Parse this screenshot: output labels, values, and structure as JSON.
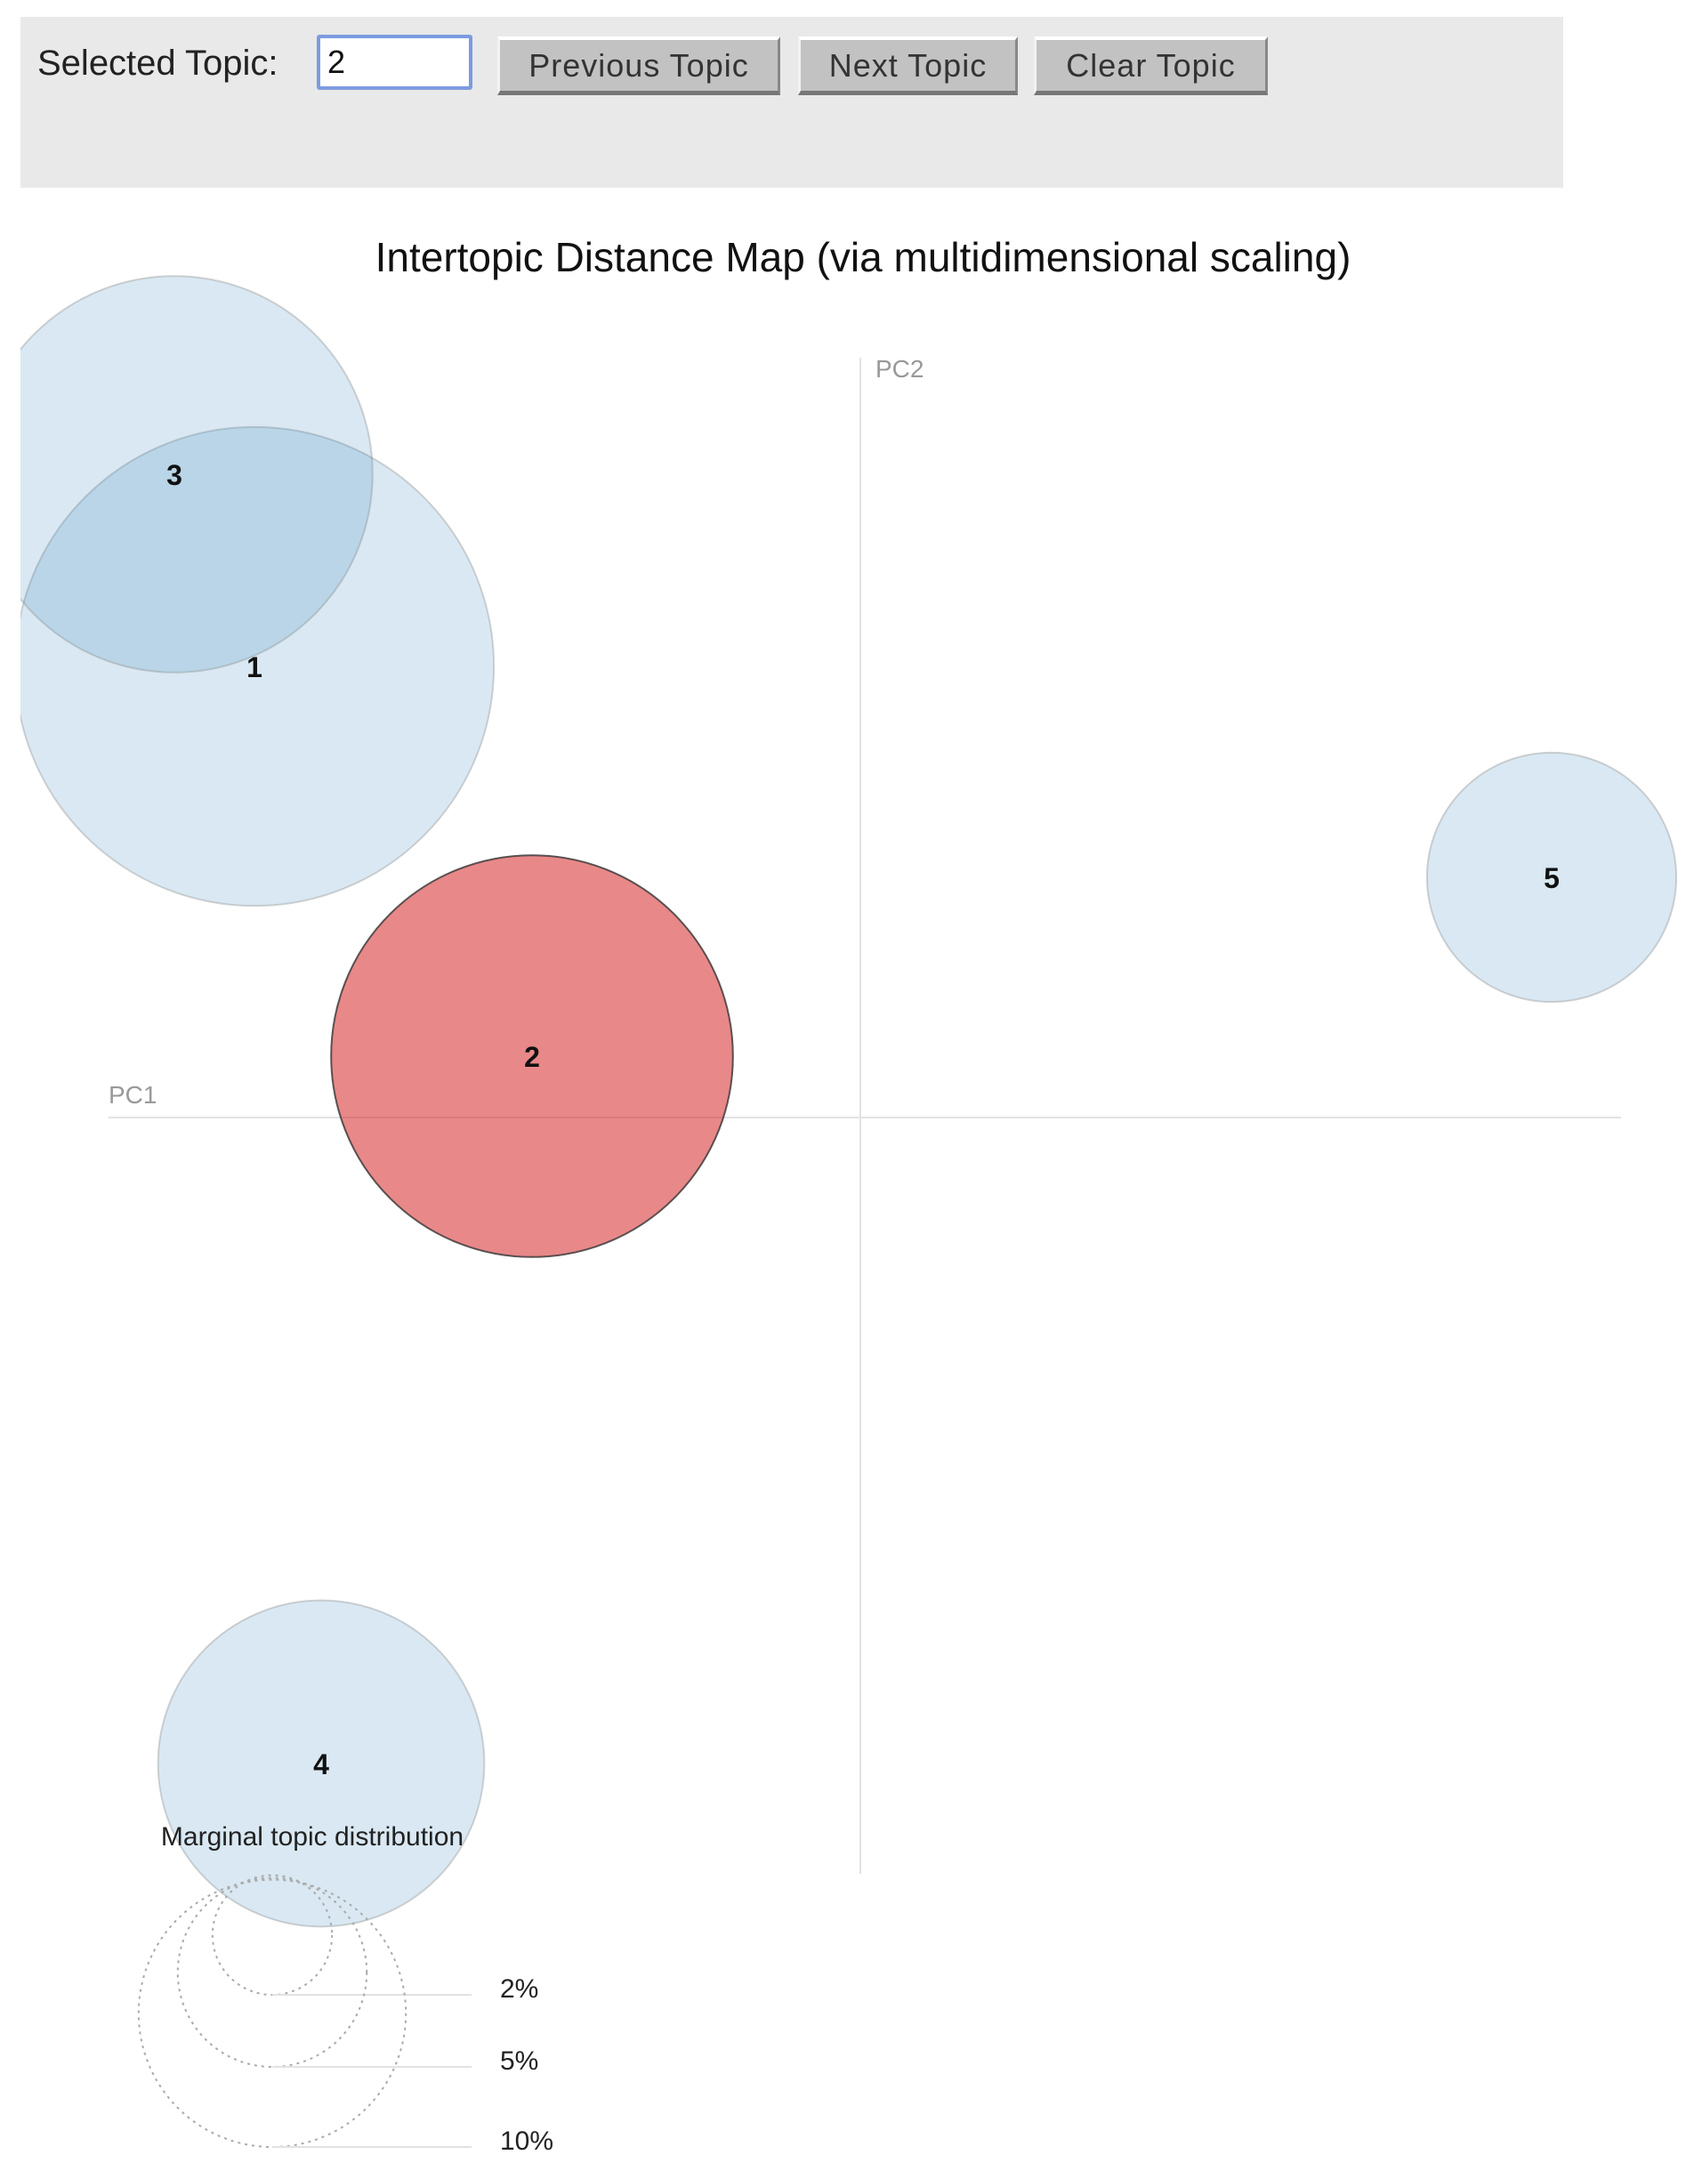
{
  "toolbar": {
    "selected_label": "Selected Topic:",
    "selected_value": "2",
    "previous_label": "Previous Topic",
    "next_label": "Next Topic",
    "clear_label": "Clear Topic"
  },
  "chart_data": {
    "type": "scatter",
    "title": "Intertopic Distance Map (via multidimensional scaling)",
    "xlabel": "PC1",
    "ylabel": "PC2",
    "selected_topic": 2,
    "topics": [
      {
        "label": "1",
        "pc1": -0.227,
        "pc2": 0.169,
        "marginal_pct": 32.1
      },
      {
        "label": "2",
        "pc1": -0.123,
        "pc2": 0.023,
        "marginal_pct": 22.6
      },
      {
        "label": "3",
        "pc1": -0.257,
        "pc2": 0.241,
        "marginal_pct": 22.0
      },
      {
        "label": "4",
        "pc1": -0.202,
        "pc2": -0.242,
        "marginal_pct": 14.9
      },
      {
        "label": "5",
        "pc1": 0.259,
        "pc2": 0.09,
        "marginal_pct": 8.7
      }
    ],
    "legend": {
      "title": "Marginal topic distribution",
      "entries": [
        {
          "label": "2%",
          "pct": 2
        },
        {
          "label": "5%",
          "pct": 5
        },
        {
          "label": "10%",
          "pct": 10
        }
      ]
    },
    "colors": {
      "default": "#1f77b4",
      "selected": "#d62728"
    }
  }
}
